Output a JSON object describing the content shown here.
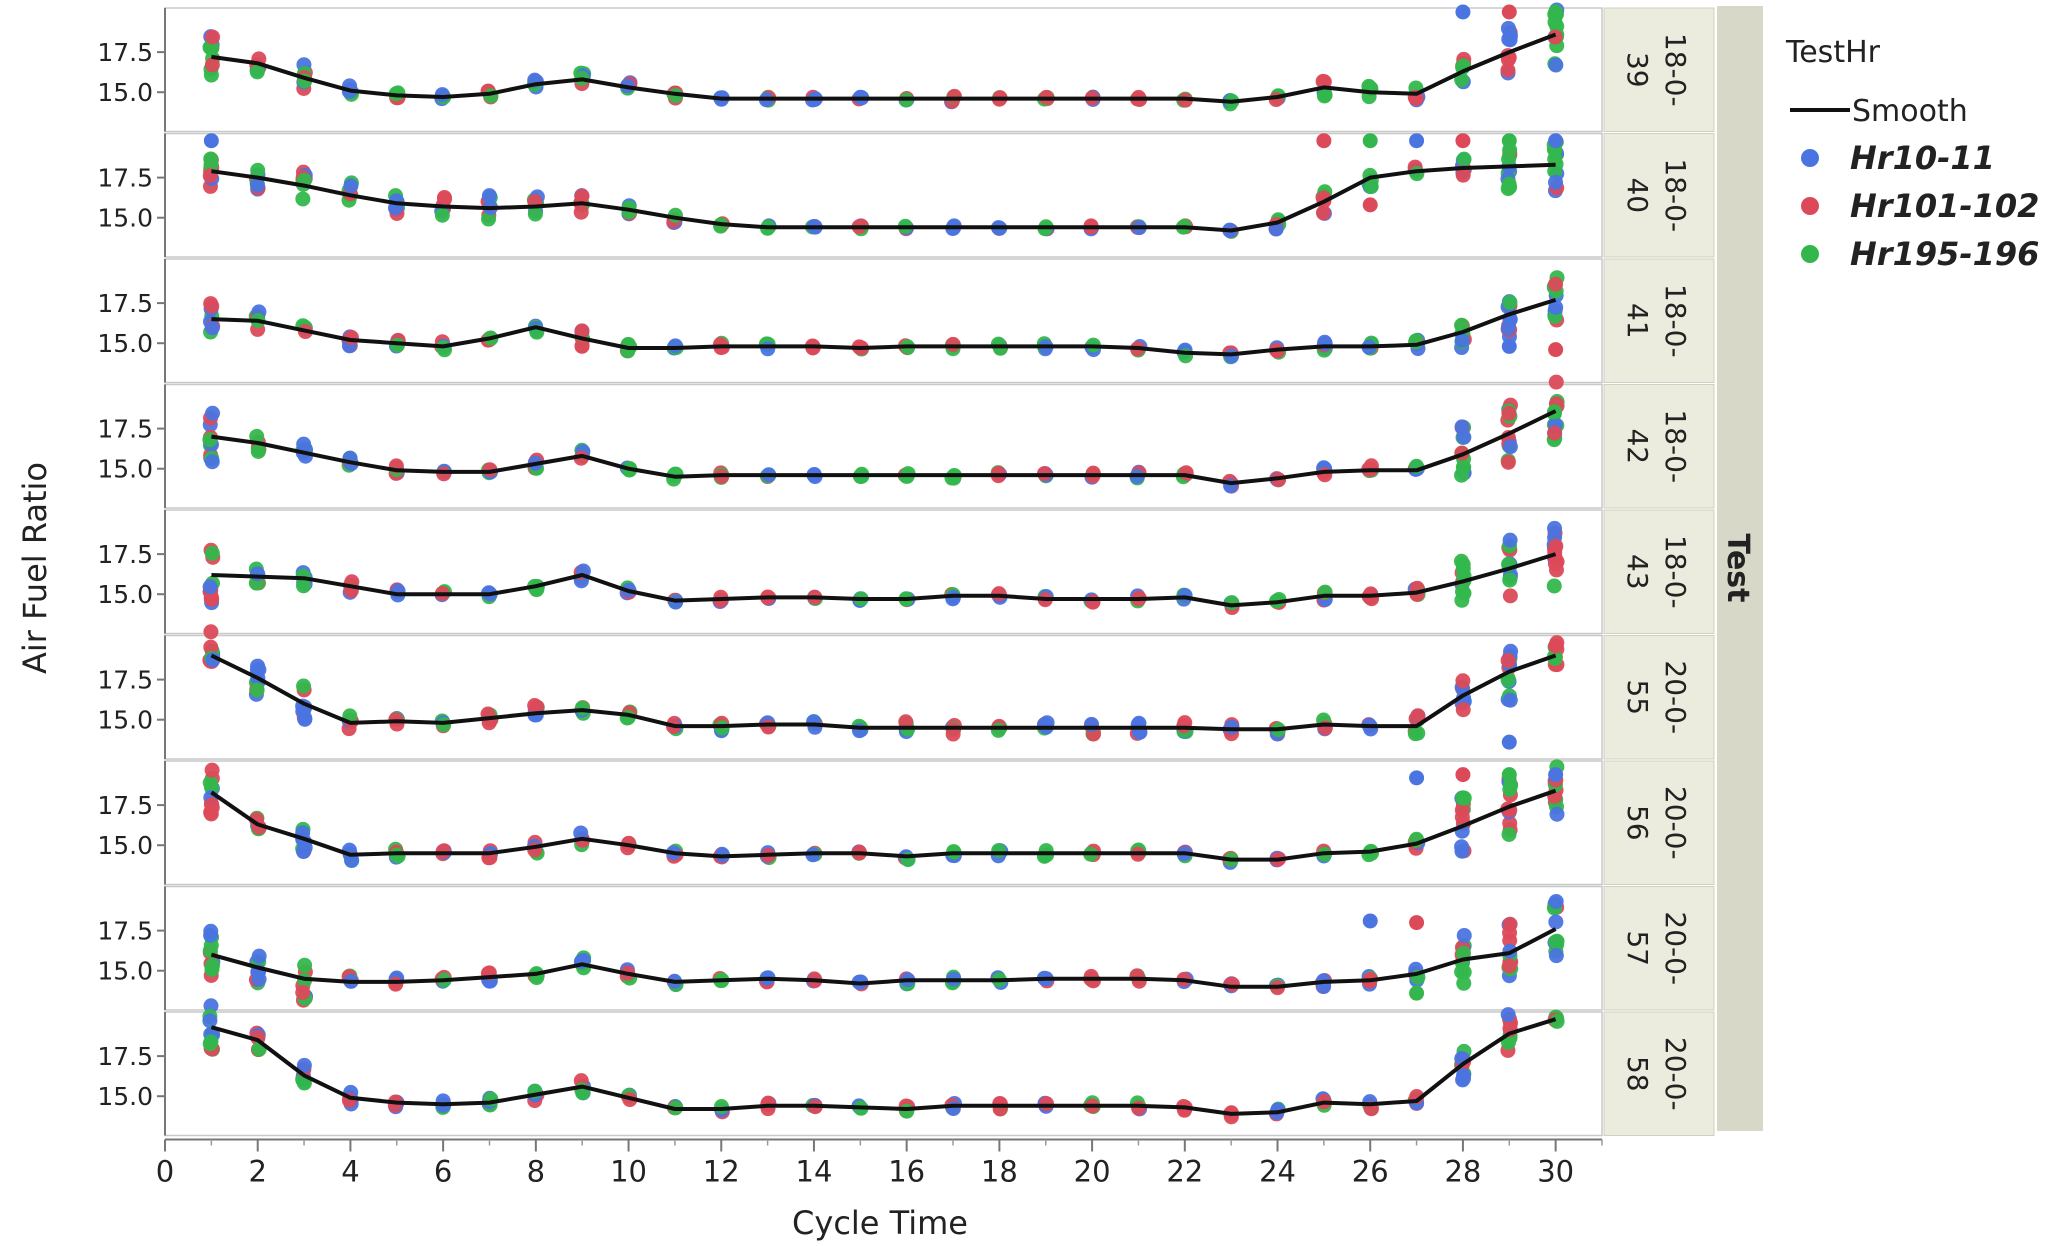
{
  "chart_data": {
    "type": "scatter",
    "xlabel": "Cycle Time",
    "ylabel": "Air Fuel Ratio",
    "xlim": [
      0,
      31
    ],
    "ylim": [
      12.8,
      20.0
    ],
    "xticks": [
      "0",
      "2",
      "4",
      "6",
      "8",
      "10",
      "12",
      "14",
      "16",
      "18",
      "20",
      "22",
      "24",
      "26",
      "28",
      "30"
    ],
    "yticks": [
      "17.5",
      "15.0"
    ],
    "yticks_values": [
      17.5,
      15.0
    ],
    "group_title": "Test",
    "legend": {
      "title": "TestHr",
      "position": "right",
      "smooth_label": "Smooth",
      "entries": [
        {
          "name": "Hr10-11",
          "color": "#4a74e0"
        },
        {
          "name": "Hr101-102",
          "color": "#dc4a5a"
        },
        {
          "name": "Hr195-196",
          "color": "#33b74c"
        }
      ]
    },
    "panels": [
      {
        "label_top": "18-0-",
        "label_bottom": "39",
        "smooth": [
          16.7,
          17.2,
          16.8,
          15.9,
          15.1,
          14.8,
          14.7,
          14.9,
          15.5,
          15.8,
          15.3,
          14.9,
          14.6,
          14.6,
          14.6,
          14.6,
          14.6,
          14.6,
          14.6,
          14.6,
          14.6,
          14.6,
          14.6,
          14.4,
          14.7,
          15.3,
          15.0,
          14.9,
          16.3,
          17.5,
          18.6
        ],
        "spread": [
          0,
          1.5,
          0.6,
          1.0,
          0.3,
          0.2,
          0.2,
          0.2,
          0.3,
          0.5,
          0.3,
          0.4,
          0.1,
          0.1,
          0.1,
          0.1,
          0.1,
          0.2,
          0.2,
          0.1,
          0.1,
          0.1,
          0.1,
          0.2,
          0.2,
          0.6,
          0.4,
          0.4,
          0.8,
          1.5,
          2.0
        ],
        "outliers": [
          [
            28,
            20.0
          ],
          [
            29,
            20.0
          ],
          [
            30,
            20.0
          ]
        ]
      },
      {
        "label_top": "18-0-",
        "label_bottom": "40",
        "smooth": [
          17.9,
          17.9,
          17.5,
          17.0,
          16.4,
          15.9,
          15.7,
          15.6,
          15.7,
          15.9,
          15.5,
          15.0,
          14.6,
          14.4,
          14.4,
          14.4,
          14.4,
          14.4,
          14.4,
          14.4,
          14.4,
          14.4,
          14.4,
          14.2,
          14.7,
          16.0,
          17.5,
          17.9,
          18.1,
          18.2,
          18.3
        ],
        "spread": [
          0,
          1.4,
          0.8,
          0.9,
          0.8,
          0.7,
          0.7,
          0.8,
          0.7,
          0.7,
          0.3,
          0.3,
          0.2,
          0.1,
          0.1,
          0.1,
          0.1,
          0.1,
          0.1,
          0.1,
          0.1,
          0.1,
          0.1,
          0.2,
          0.5,
          0.8,
          0.6,
          0.3,
          0.6,
          1.5,
          2.0
        ],
        "outliers": [
          [
            1,
            19.8
          ],
          [
            25,
            19.8
          ],
          [
            26,
            19.8
          ],
          [
            27,
            19.8
          ],
          [
            28,
            19.8
          ],
          [
            29,
            19.8
          ],
          [
            30,
            19.8
          ],
          [
            26,
            15.8
          ]
        ]
      },
      {
        "label_top": "18-0-",
        "label_bottom": "41",
        "smooth": [
          16.3,
          16.5,
          16.4,
          15.8,
          15.2,
          15.0,
          14.8,
          15.3,
          16.0,
          15.3,
          14.7,
          14.7,
          14.8,
          14.8,
          14.8,
          14.7,
          14.8,
          14.8,
          14.8,
          14.8,
          14.8,
          14.7,
          14.4,
          14.3,
          14.6,
          14.8,
          14.8,
          14.9,
          15.7,
          16.8,
          17.7
        ],
        "spread": [
          0,
          1.0,
          0.6,
          0.4,
          0.4,
          0.2,
          0.3,
          0.3,
          0.4,
          0.5,
          0.3,
          0.2,
          0.2,
          0.2,
          0.1,
          0.1,
          0.1,
          0.2,
          0.2,
          0.2,
          0.2,
          0.2,
          0.2,
          0.2,
          0.2,
          0.3,
          0.3,
          0.3,
          1.0,
          1.5,
          1.5
        ],
        "outliers": [
          [
            29,
            14.8
          ],
          [
            30,
            14.6
          ]
        ]
      },
      {
        "label_top": "18-0-",
        "label_bottom": "42",
        "smooth": [
          17.2,
          17.0,
          16.6,
          16.0,
          15.4,
          14.9,
          14.8,
          14.8,
          15.3,
          15.8,
          15.0,
          14.5,
          14.6,
          14.6,
          14.6,
          14.6,
          14.6,
          14.6,
          14.6,
          14.6,
          14.6,
          14.6,
          14.6,
          14.1,
          14.4,
          14.8,
          14.9,
          14.9,
          15.9,
          17.2,
          18.6
        ],
        "spread": [
          0,
          1.6,
          0.6,
          0.6,
          0.4,
          0.3,
          0.2,
          0.2,
          0.4,
          0.4,
          0.3,
          0.2,
          0.2,
          0.1,
          0.1,
          0.1,
          0.1,
          0.2,
          0.2,
          0.2,
          0.2,
          0.2,
          0.2,
          0.2,
          0.2,
          0.3,
          0.3,
          0.3,
          2.0,
          2.0,
          2.0
        ],
        "outliers": []
      },
      {
        "label_top": "18-0-",
        "label_bottom": "43",
        "smooth": [
          16.4,
          16.2,
          16.1,
          16.0,
          15.5,
          15.0,
          15.0,
          15.0,
          15.5,
          16.2,
          15.2,
          14.6,
          14.7,
          14.8,
          14.8,
          14.7,
          14.7,
          14.9,
          14.9,
          14.7,
          14.7,
          14.7,
          14.8,
          14.3,
          14.5,
          14.9,
          14.9,
          15.1,
          15.8,
          16.6,
          17.5
        ],
        "spread": [
          0,
          1.8,
          0.5,
          0.5,
          0.4,
          0.3,
          0.2,
          0.2,
          0.3,
          0.4,
          0.2,
          0.1,
          0.2,
          0.1,
          0.1,
          0.1,
          0.1,
          0.2,
          0.2,
          0.2,
          0.2,
          0.2,
          0.2,
          0.2,
          0.2,
          0.3,
          0.3,
          0.3,
          1.5,
          1.8,
          2.0
        ],
        "outliers": []
      },
      {
        "label_top": "20-0-",
        "label_bottom": "55",
        "smooth": [
          19.5,
          19.0,
          17.6,
          16.0,
          14.8,
          14.9,
          14.8,
          15.1,
          15.4,
          15.6,
          15.3,
          14.6,
          14.6,
          14.7,
          14.7,
          14.5,
          14.5,
          14.5,
          14.5,
          14.5,
          14.5,
          14.5,
          14.5,
          14.4,
          14.4,
          14.7,
          14.6,
          14.6,
          16.5,
          18.0,
          19.0
        ],
        "spread": [
          0,
          1.6,
          1.1,
          1.1,
          0.5,
          0.3,
          0.2,
          0.3,
          0.6,
          0.2,
          0.2,
          0.2,
          0.3,
          0.2,
          0.2,
          0.2,
          0.4,
          0.4,
          0.4,
          0.4,
          0.4,
          0.4,
          0.4,
          0.3,
          0.3,
          0.3,
          0.2,
          0.7,
          1.0,
          1.8,
          1.0
        ],
        "outliers": [
          [
            29,
            13.6
          ],
          [
            30,
            19.6
          ]
        ]
      },
      {
        "label_top": "20-0-",
        "label_bottom": "56",
        "smooth": [
          19.5,
          18.3,
          16.3,
          15.4,
          14.4,
          14.5,
          14.5,
          14.5,
          14.9,
          15.4,
          15.0,
          14.5,
          14.3,
          14.4,
          14.5,
          14.5,
          14.3,
          14.5,
          14.5,
          14.5,
          14.5,
          14.5,
          14.5,
          14.1,
          14.1,
          14.5,
          14.6,
          15.1,
          16.2,
          17.4,
          18.4
        ],
        "spread": [
          0,
          1.6,
          0.6,
          1.2,
          0.4,
          0.3,
          0.2,
          0.3,
          0.4,
          0.4,
          0.2,
          0.2,
          0.2,
          0.2,
          0.1,
          0.1,
          0.2,
          0.2,
          0.2,
          0.2,
          0.2,
          0.2,
          0.2,
          0.2,
          0.1,
          0.2,
          0.2,
          0.3,
          1.8,
          1.8,
          1.5
        ],
        "outliers": [
          [
            27,
            19.2
          ],
          [
            28,
            19.4
          ],
          [
            29,
            19.4
          ],
          [
            30,
            19.4
          ]
        ]
      },
      {
        "label_top": "20-0-",
        "label_bottom": "57",
        "smooth": [
          18.2,
          16.0,
          15.2,
          14.5,
          14.3,
          14.3,
          14.4,
          14.6,
          14.8,
          15.4,
          14.8,
          14.3,
          14.4,
          14.5,
          14.4,
          14.2,
          14.4,
          14.4,
          14.4,
          14.5,
          14.5,
          14.5,
          14.4,
          14.0,
          14.0,
          14.3,
          14.4,
          14.8,
          15.7,
          16.1,
          17.6
        ],
        "spread": [
          0,
          1.5,
          1.0,
          1.4,
          0.4,
          0.3,
          0.2,
          0.3,
          0.4,
          0.5,
          0.3,
          0.2,
          0.2,
          0.2,
          0.1,
          0.1,
          0.3,
          0.2,
          0.2,
          0.2,
          0.2,
          0.2,
          0.2,
          0.2,
          0.1,
          0.3,
          0.3,
          0.4,
          1.5,
          1.8,
          1.8
        ],
        "outliers": [
          [
            26,
            18.1
          ],
          [
            27,
            18.0
          ],
          [
            27,
            13.6
          ]
        ]
      },
      {
        "label_top": "20-0-",
        "label_bottom": "58",
        "smooth": [
          19.9,
          19.3,
          18.5,
          16.3,
          14.9,
          14.6,
          14.5,
          14.6,
          15.1,
          15.6,
          14.9,
          14.2,
          14.2,
          14.4,
          14.4,
          14.3,
          14.2,
          14.4,
          14.4,
          14.4,
          14.4,
          14.4,
          14.3,
          13.9,
          14.0,
          14.6,
          14.5,
          14.7,
          17.0,
          18.9,
          19.8
        ],
        "spread": [
          0,
          1.6,
          0.6,
          0.7,
          0.4,
          0.3,
          0.3,
          0.3,
          0.4,
          0.4,
          0.2,
          0.2,
          0.2,
          0.2,
          0.1,
          0.1,
          0.2,
          0.2,
          0.2,
          0.2,
          0.2,
          0.2,
          0.2,
          0.2,
          0.2,
          0.3,
          0.3,
          0.4,
          1.4,
          1.2,
          0.2
        ],
        "outliers": []
      }
    ]
  }
}
